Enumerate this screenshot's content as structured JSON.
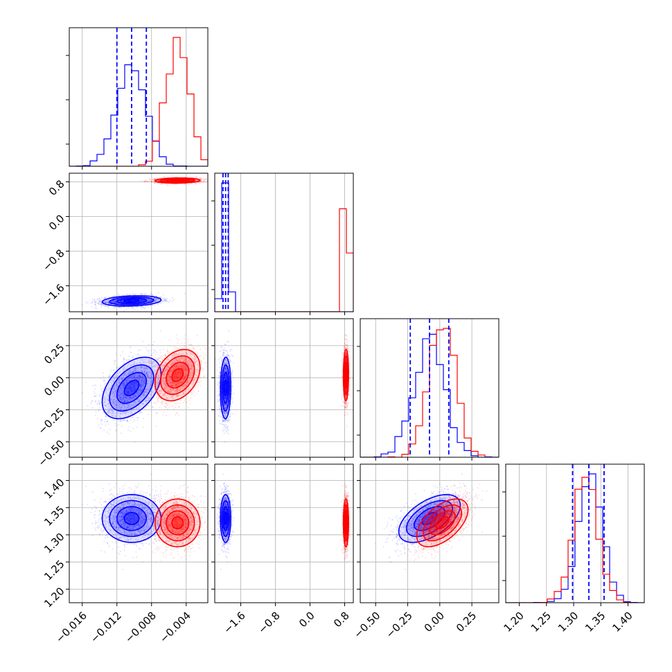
{
  "chart_data": {
    "type": "corner",
    "title": "",
    "parameters": [
      {
        "name": "",
        "range": [
          -0.0175,
          -0.0015
        ],
        "ticks": [
          -0.016,
          -0.012,
          -0.008,
          -0.004
        ],
        "tick_labels": [
          "−0.016",
          "−0.012",
          "−0.008",
          "−0.004"
        ]
      },
      {
        "name": "",
        "range": [
          -2.2,
          1.0
        ],
        "ticks": [
          -1.6,
          -0.8,
          0.0,
          0.8
        ],
        "tick_labels": [
          "−1.6",
          "−0.8",
          "0.0",
          "0.8"
        ]
      },
      {
        "name": "",
        "range": [
          -0.62,
          0.46
        ],
        "ticks": [
          -0.5,
          -0.25,
          0.0,
          0.25
        ],
        "tick_labels": [
          "−0.50",
          "−0.25",
          "0.00",
          "0.25"
        ]
      },
      {
        "name": "",
        "range": [
          1.175,
          1.43
        ],
        "ticks": [
          1.2,
          1.25,
          1.3,
          1.35,
          1.4
        ],
        "tick_labels": [
          "1.20",
          "1.25",
          "1.30",
          "1.35",
          "1.40"
        ]
      }
    ],
    "series": [
      {
        "name": "",
        "color": "#0000ff",
        "mean": [
          -0.0103,
          -1.95,
          -0.08,
          1.33
        ],
        "std": [
          0.0017,
          0.06,
          0.12,
          0.022
        ],
        "corr": [
          [
            1.0,
            0.2,
            0.45,
            0.0
          ],
          [
            0.2,
            1.0,
            0.05,
            0.0
          ],
          [
            0.45,
            0.05,
            1.0,
            0.55
          ],
          [
            0.0,
            0.0,
            0.55,
            1.0
          ]
        ],
        "quantiles_16_50_84": [
          [
            -0.012,
            -0.0103,
            -0.0086
          ],
          [
            -2.01,
            -1.95,
            -1.89
          ],
          [
            -0.23,
            -0.08,
            0.07
          ],
          [
            1.298,
            1.328,
            1.356
          ]
        ]
      },
      {
        "name": "",
        "color": "#ff0000",
        "mean": [
          -0.005,
          0.83,
          0.02,
          1.322
        ],
        "std": [
          0.0013,
          0.03,
          0.1,
          0.022
        ],
        "corr": [
          [
            1.0,
            0.1,
            0.3,
            0.0
          ],
          [
            0.1,
            1.0,
            0.05,
            0.0
          ],
          [
            0.3,
            0.05,
            1.0,
            0.55
          ],
          [
            0.0,
            0.0,
            0.55,
            1.0
          ]
        ]
      }
    ],
    "contour_levels_sigma": [
      0.5,
      1.0,
      1.5,
      2.0
    ],
    "grid": true,
    "legend": "none"
  }
}
